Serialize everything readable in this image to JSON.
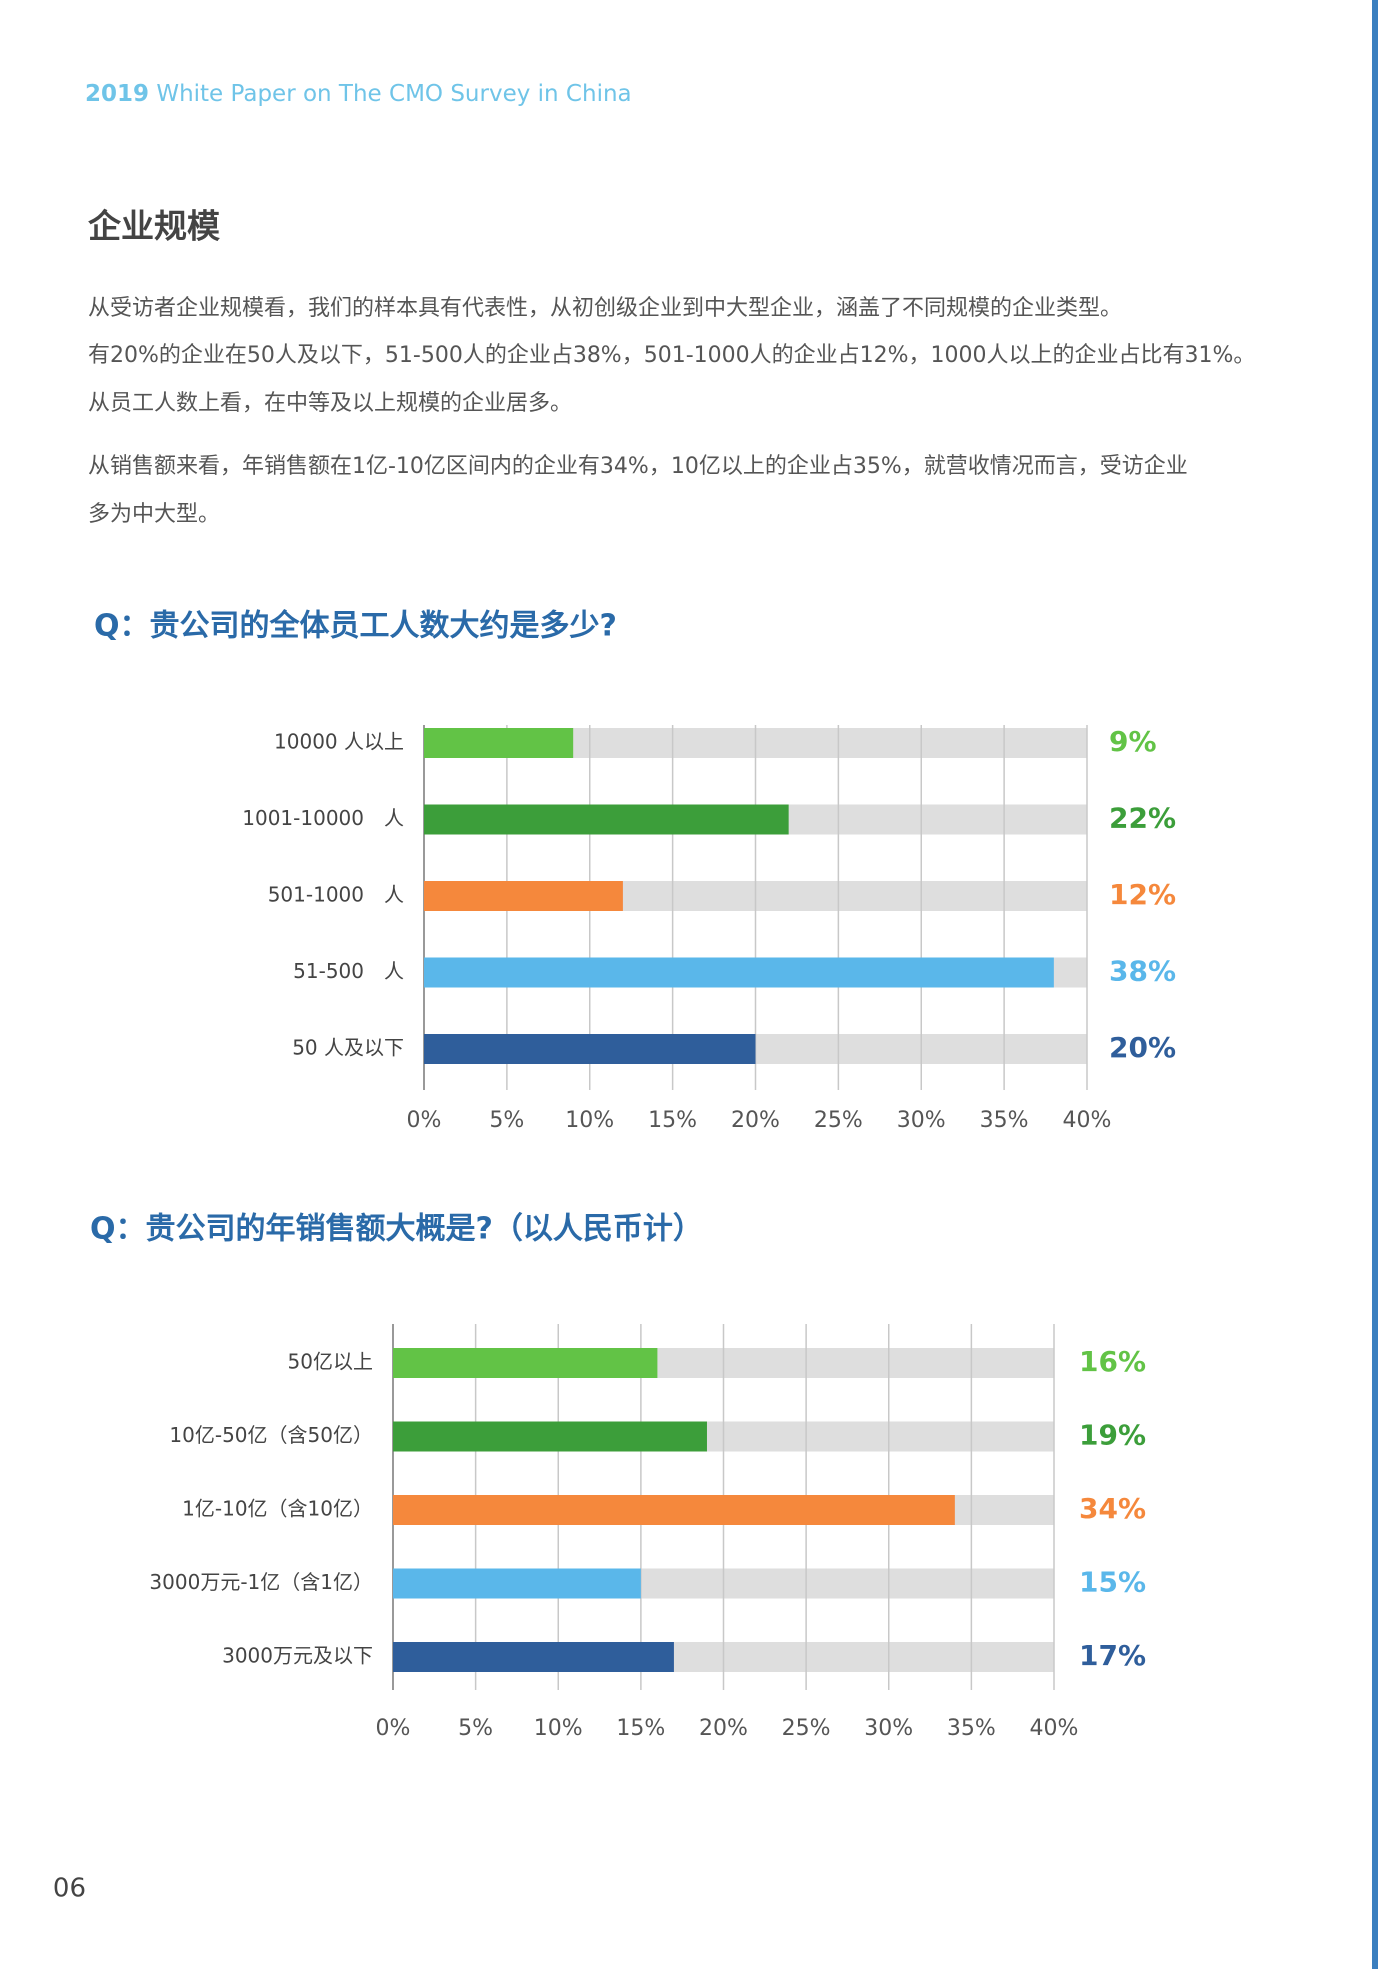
{
  "header": {
    "title_bold": "2019",
    "title": "White Paper on The CMO Survey in China"
  },
  "heading": "企业规模",
  "paragraphs": [
    [
      "从受访者企业规模看，我们的样本具有代表性，从初创级企业到中大型企业，涵盖了不同规模的企业类型。",
      "有20%的企业在50人及以下，51-500人的企业占38%，501-1000人的企业占12%，1000人以上的企业占比有31%。",
      "从员工人数上看，在中等及以上规模的企业居多。"
    ],
    [
      "从销售额来看，年销售额在1亿-10亿区间内的企业有34%，10亿以上的企业占35%，就营收情况而言，受访企业",
      "多为中大型。"
    ]
  ],
  "chart_data": [
    {
      "type": "hbar",
      "title": "Q：贵公司的全体员工人数大约是多少?",
      "categories": [
        "10000 人以上",
        "1001-10000　人",
        "501-1000　人",
        "51-500　人",
        "50 人及以下"
      ],
      "values": [
        9,
        22,
        12,
        38,
        20
      ],
      "value_labels": [
        "9%",
        "22%",
        "12%",
        "38%",
        "20%"
      ],
      "colors": [
        "#62c346",
        "#3c9e3a",
        "#f5883c",
        "#5ab7ea",
        "#2f5e9b"
      ],
      "xlim": [
        0,
        40
      ],
      "xticks": [
        {
          "value": 0,
          "label": "0%"
        },
        {
          "value": 5,
          "label": "5%"
        },
        {
          "value": 10,
          "label": "10%"
        },
        {
          "value": 15,
          "label": "15%"
        },
        {
          "value": 20,
          "label": "20%"
        },
        {
          "value": 25,
          "label": "25%"
        },
        {
          "value": 30,
          "label": "30%"
        },
        {
          "value": 35,
          "label": "35%"
        },
        {
          "value": 40,
          "label": "40%"
        }
      ],
      "grid": true
    },
    {
      "type": "hbar",
      "title": "Q：贵公司的年销售额大概是?（以人民币计）",
      "categories": [
        "50亿以上",
        "10亿-50亿（含50亿）",
        "1亿-10亿（含10亿）",
        "3000万元-1亿（含1亿）",
        "3000万元及以下"
      ],
      "values": [
        16,
        19,
        34,
        15,
        17
      ],
      "value_labels": [
        "16%",
        "19%",
        "34%",
        "15%",
        "17%"
      ],
      "colors": [
        "#62c346",
        "#3c9e3a",
        "#f5883c",
        "#5ab7ea",
        "#2f5e9b"
      ],
      "xlim": [
        0,
        40
      ],
      "xticks": [
        {
          "value": 0,
          "label": "0%"
        },
        {
          "value": 5,
          "label": "5%"
        },
        {
          "value": 10,
          "label": "10%"
        },
        {
          "value": 15,
          "label": "15%"
        },
        {
          "value": 20,
          "label": "20%"
        },
        {
          "value": 25,
          "label": "25%"
        },
        {
          "value": 30,
          "label": "30%"
        },
        {
          "value": 35,
          "label": "35%"
        },
        {
          "value": 40,
          "label": "40%"
        }
      ],
      "grid": true
    }
  ],
  "page_number": "06"
}
